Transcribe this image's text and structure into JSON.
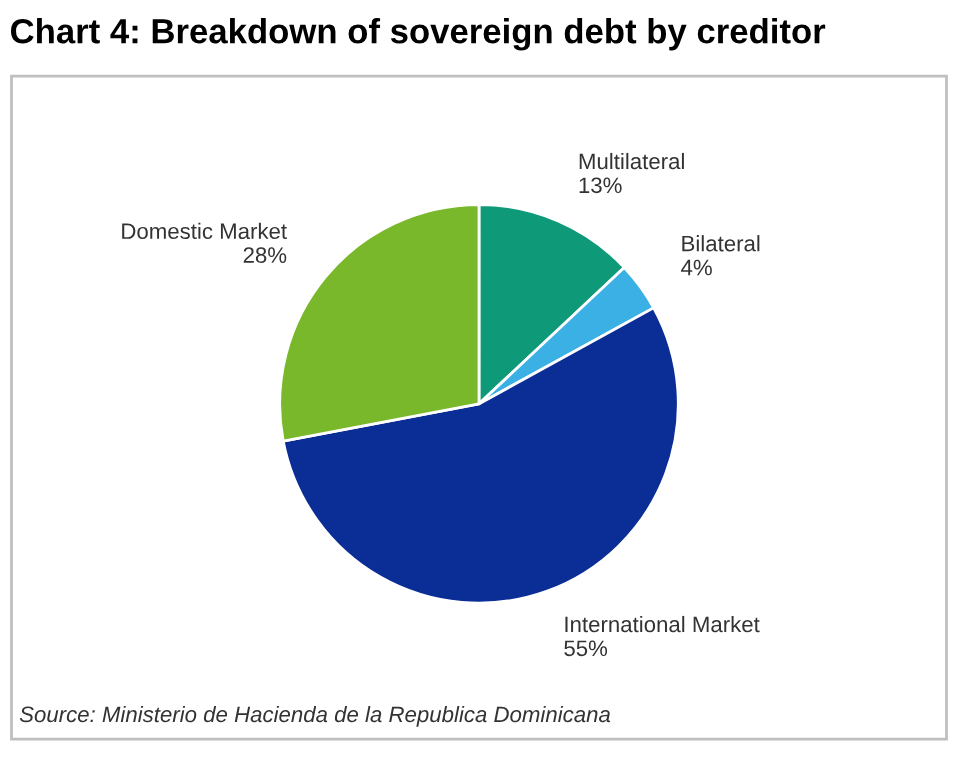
{
  "chart_data": {
    "type": "pie",
    "title": "Chart 4: Breakdown of sovereign debt by creditor",
    "categories": [
      "Multilateral",
      "Bilateral",
      "International Market",
      "Domestic Market"
    ],
    "values": [
      13,
      4,
      55,
      28
    ],
    "value_labels": [
      "13%",
      "4%",
      "55%",
      "28%"
    ],
    "colors": [
      "#0e9a78",
      "#3bb0e4",
      "#0a2d96",
      "#78b82a"
    ],
    "annotations": [
      "Source: Ministerio de Hacienda de la Republica Dominicana"
    ],
    "legend": false
  }
}
